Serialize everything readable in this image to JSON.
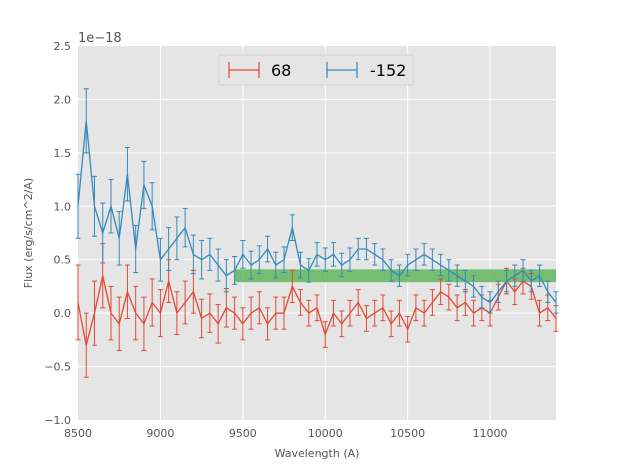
{
  "chart_data": {
    "type": "line",
    "title": "",
    "xlabel": "Wavelength (A)",
    "ylabel": "Flux (erg/s/cm^2/A)",
    "y_offset_label": "1e−18",
    "xlim": [
      8500,
      11400
    ],
    "ylim": [
      -1.0,
      2.5
    ],
    "x_ticks": [
      8500,
      9000,
      9500,
      10000,
      10500,
      11000
    ],
    "x_tick_labels": [
      "8500",
      "9000",
      "9500",
      "10000",
      "10500",
      "11000"
    ],
    "y_ticks": [
      -1.0,
      -0.5,
      0.0,
      0.5,
      1.0,
      1.5,
      2.0,
      2.5
    ],
    "y_tick_labels": [
      "−1.0",
      "−0.5",
      "0.0",
      "0.5",
      "1.0",
      "1.5",
      "2.0",
      "2.5"
    ],
    "grid": true,
    "legend_position": "top-center",
    "band": {
      "x_start": 9450,
      "x_end": 11400,
      "y_low": 0.29,
      "y_high": 0.41,
      "color": "#4daf4a"
    },
    "series": [
      {
        "name": "68",
        "color": "#e24a33",
        "x": [
          8500,
          8550,
          8600,
          8650,
          8700,
          8750,
          8800,
          8850,
          8900,
          8950,
          9000,
          9050,
          9100,
          9150,
          9200,
          9250,
          9300,
          9350,
          9400,
          9450,
          9500,
          9550,
          9600,
          9650,
          9700,
          9750,
          9800,
          9850,
          9900,
          9950,
          10000,
          10050,
          10100,
          10150,
          10200,
          10250,
          10300,
          10350,
          10400,
          10450,
          10500,
          10550,
          10600,
          10650,
          10700,
          10750,
          10800,
          10850,
          10900,
          10950,
          11000,
          11050,
          11100,
          11150,
          11200,
          11250,
          11300,
          11350,
          11400
        ],
        "y": [
          0.1,
          -0.3,
          0.0,
          0.35,
          0.0,
          -0.1,
          0.2,
          0.0,
          -0.1,
          0.1,
          0.0,
          0.3,
          0.0,
          0.1,
          0.2,
          -0.05,
          0.0,
          -0.1,
          0.05,
          0.0,
          -0.1,
          0.0,
          0.05,
          -0.1,
          0.0,
          0.0,
          0.25,
          0.1,
          0.0,
          0.05,
          -0.2,
          0.0,
          -0.1,
          0.0,
          0.1,
          -0.05,
          0.0,
          0.05,
          -0.1,
          0.0,
          -0.15,
          0.05,
          0.0,
          0.1,
          0.2,
          0.15,
          0.05,
          0.1,
          0.0,
          0.05,
          0.0,
          0.15,
          0.3,
          0.2,
          0.3,
          0.25,
          0.0,
          0.05,
          -0.05
        ],
        "err": [
          0.35,
          0.3,
          0.3,
          0.3,
          0.25,
          0.25,
          0.25,
          0.25,
          0.25,
          0.22,
          0.22,
          0.2,
          0.2,
          0.2,
          0.2,
          0.18,
          0.18,
          0.18,
          0.18,
          0.15,
          0.15,
          0.15,
          0.15,
          0.15,
          0.15,
          0.15,
          0.15,
          0.12,
          0.12,
          0.12,
          0.12,
          0.12,
          0.12,
          0.12,
          0.12,
          0.12,
          0.12,
          0.12,
          0.12,
          0.12,
          0.12,
          0.12,
          0.12,
          0.12,
          0.12,
          0.12,
          0.12,
          0.12,
          0.12,
          0.12,
          0.12,
          0.12,
          0.12,
          0.12,
          0.12,
          0.12,
          0.12,
          0.12,
          0.12
        ]
      },
      {
        "name": "-152",
        "color": "#348abd",
        "x": [
          8500,
          8550,
          8600,
          8650,
          8700,
          8750,
          8800,
          8850,
          8900,
          8950,
          9000,
          9050,
          9100,
          9150,
          9200,
          9250,
          9300,
          9350,
          9400,
          9450,
          9500,
          9550,
          9600,
          9650,
          9700,
          9750,
          9800,
          9850,
          9900,
          9950,
          10000,
          10050,
          10100,
          10150,
          10200,
          10250,
          10300,
          10350,
          10400,
          10450,
          10500,
          10550,
          10600,
          10650,
          10700,
          10750,
          10800,
          10850,
          10900,
          10950,
          11000,
          11050,
          11100,
          11150,
          11200,
          11250,
          11300,
          11350,
          11400
        ],
        "y": [
          1.0,
          1.8,
          1.0,
          0.75,
          1.0,
          0.7,
          1.3,
          0.6,
          1.2,
          1.0,
          0.5,
          0.6,
          0.7,
          0.8,
          0.55,
          0.5,
          0.55,
          0.45,
          0.35,
          0.4,
          0.55,
          0.45,
          0.5,
          0.6,
          0.45,
          0.5,
          0.8,
          0.45,
          0.4,
          0.55,
          0.5,
          0.55,
          0.45,
          0.5,
          0.6,
          0.6,
          0.55,
          0.5,
          0.4,
          0.35,
          0.45,
          0.5,
          0.55,
          0.5,
          0.45,
          0.4,
          0.35,
          0.3,
          0.25,
          0.15,
          0.1,
          0.2,
          0.3,
          0.35,
          0.4,
          0.3,
          0.35,
          0.2,
          0.1
        ],
        "err": [
          0.3,
          0.3,
          0.28,
          0.28,
          0.25,
          0.25,
          0.25,
          0.22,
          0.22,
          0.22,
          0.2,
          0.2,
          0.2,
          0.18,
          0.18,
          0.18,
          0.15,
          0.15,
          0.15,
          0.13,
          0.13,
          0.13,
          0.13,
          0.12,
          0.12,
          0.12,
          0.12,
          0.12,
          0.11,
          0.11,
          0.11,
          0.11,
          0.11,
          0.11,
          0.1,
          0.1,
          0.1,
          0.1,
          0.1,
          0.1,
          0.1,
          0.1,
          0.1,
          0.1,
          0.1,
          0.1,
          0.1,
          0.1,
          0.1,
          0.1,
          0.1,
          0.1,
          0.1,
          0.1,
          0.1,
          0.1,
          0.1,
          0.1,
          0.1
        ]
      }
    ]
  }
}
